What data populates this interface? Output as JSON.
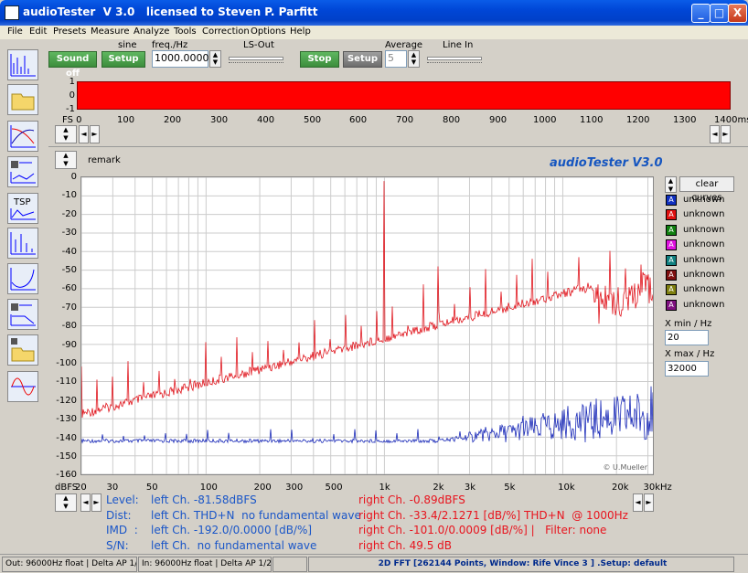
{
  "window": {
    "title": "audioTester  V 3.0   licensed to Steven P. Parfitt",
    "min": "_",
    "max": "□",
    "close": "X"
  },
  "menu": [
    "File",
    "Edit",
    "Presets",
    "Measure",
    "Analyze",
    "Tools",
    "Correction",
    "Options",
    "Help"
  ],
  "toolbar": {
    "sound_off": "Sound off",
    "setup1": "Setup",
    "sine": "sine",
    "freq_label": "freq./Hz",
    "freq_value": "1000.0000",
    "ls_out": "LS-Out",
    "stop": "Stop",
    "setup2": "Setup",
    "average": "Average",
    "average_value": "5",
    "line_in": "Line In"
  },
  "scope": {
    "yticks": [
      "1",
      "0",
      "-1"
    ],
    "xticks": [
      "FS 0",
      "100",
      "200",
      "300",
      "400",
      "500",
      "600",
      "700",
      "800",
      "900",
      "1000",
      "1100",
      "1200",
      "1300",
      "1400ms"
    ]
  },
  "plot": {
    "brand": "audioTester  V3.0",
    "remark": "remark",
    "watermark": "© U.Mueller",
    "yticks": [
      "0",
      "-10",
      "-20",
      "-30",
      "-40",
      "-50",
      "-60",
      "-70",
      "-80",
      "-90",
      "-100",
      "-110",
      "-120",
      "-130",
      "-140",
      "-150",
      "-160"
    ],
    "xticks": [
      "20",
      "30",
      "50",
      "100",
      "200",
      "300",
      "500",
      "1k",
      "2k",
      "3k",
      "5k",
      "10k",
      "20k",
      "30kHz"
    ],
    "yunit": "dBFS"
  },
  "legend": {
    "clear": "clear curves",
    "items": [
      {
        "label": "unknown",
        "color": "#1030c0"
      },
      {
        "label": "unknown",
        "color": "#e01010"
      },
      {
        "label": "unknown",
        "color": "#108010"
      },
      {
        "label": "unknown",
        "color": "#e010e0"
      },
      {
        "label": "unknown",
        "color": "#108080"
      },
      {
        "label": "unknown",
        "color": "#801010"
      },
      {
        "label": "unknown",
        "color": "#808010"
      },
      {
        "label": "unknown",
        "color": "#801080"
      }
    ],
    "xmin_label": "X min / Hz",
    "xmin": "20",
    "xmax_label": "X max / Hz",
    "xmax": "32000"
  },
  "results": {
    "level": "Level:",
    "dist": "Dist:",
    "imd": "IMD  :",
    "sn": "S/N:",
    "left_level": "left Ch. -81.58dBFS",
    "left_dist": "left Ch. THD+N  no fundamental wave",
    "left_imd": "left Ch. -192.0/0.0000 [dB/%]",
    "left_sn": "left Ch.  no fundamental wave",
    "right_level": "right Ch. -0.89dBFS",
    "right_dist": "right Ch. -33.4/2.1271 [dB/%] THD+N  @ 1000Hz",
    "right_imd": "right Ch. -101.0/0.0009 [dB/%] |   Filter: none",
    "right_sn": "right Ch. 49.5 dB"
  },
  "status": {
    "out": "Out: 96000Hz float  | Delta AP 1/2",
    "in": "In: 96000Hz float  | Delta AP 1/2",
    "fft": "2D FFT [262144 Points, Window: Rife Vince 3 ] .Setup:  default"
  }
}
